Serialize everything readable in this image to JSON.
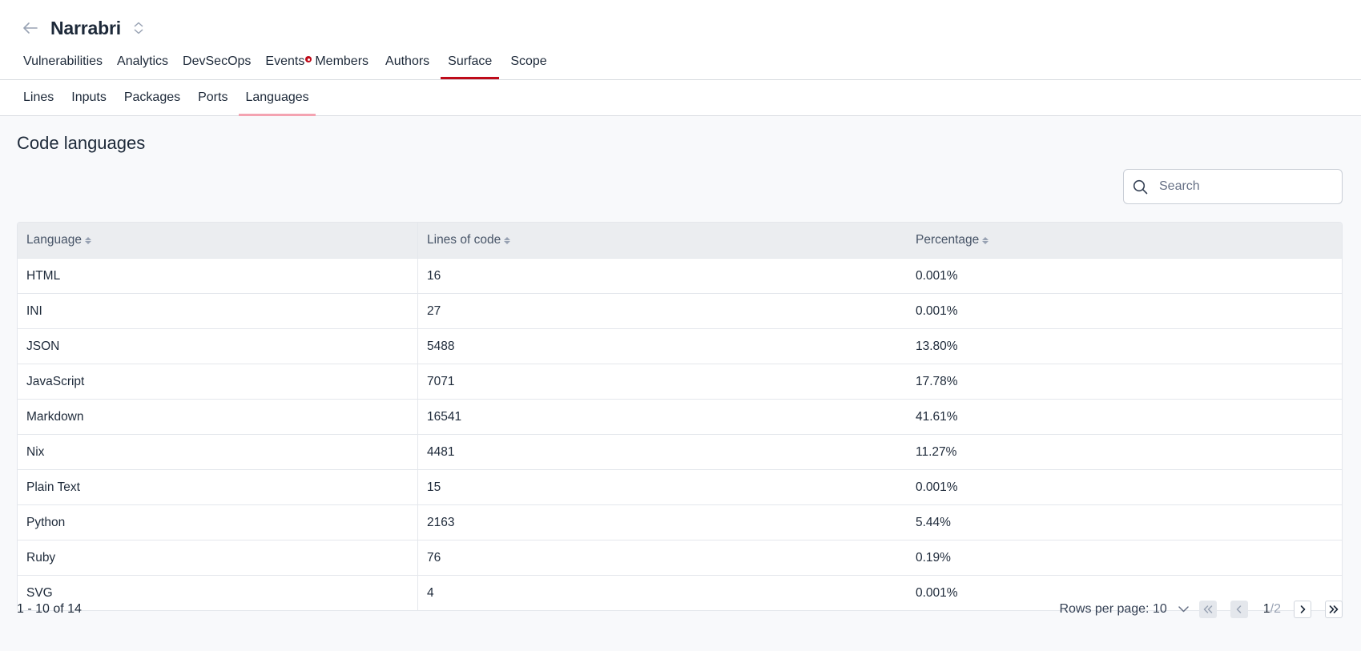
{
  "header": {
    "group_name": "Narrabri",
    "back_icon": "arrow-left-icon",
    "switch_icon": "sort-switch-icon"
  },
  "main_tabs": [
    {
      "label": "Vulnerabilities",
      "active": false
    },
    {
      "label": "Analytics",
      "active": false
    },
    {
      "label": "DevSecOps",
      "active": false
    },
    {
      "label": "Events",
      "active": false,
      "alert": true
    },
    {
      "label": "Members",
      "active": false
    },
    {
      "label": "Authors",
      "active": false
    },
    {
      "label": "Surface",
      "active": true
    },
    {
      "label": "Scope",
      "active": false
    }
  ],
  "sub_tabs": [
    {
      "label": "Lines",
      "active": false
    },
    {
      "label": "Inputs",
      "active": false
    },
    {
      "label": "Packages",
      "active": false
    },
    {
      "label": "Ports",
      "active": false
    },
    {
      "label": "Languages",
      "active": true
    }
  ],
  "page": {
    "title": "Code languages"
  },
  "search": {
    "placeholder": "Search",
    "value": ""
  },
  "table": {
    "columns": [
      "Language",
      "Lines of code",
      "Percentage"
    ],
    "rows": [
      {
        "language": "HTML",
        "lines": "16",
        "percentage": "0.001%"
      },
      {
        "language": "INI",
        "lines": "27",
        "percentage": "0.001%"
      },
      {
        "language": "JSON",
        "lines": "5488",
        "percentage": "13.80%"
      },
      {
        "language": "JavaScript",
        "lines": "7071",
        "percentage": "17.78%"
      },
      {
        "language": "Markdown",
        "lines": "16541",
        "percentage": "41.61%"
      },
      {
        "language": "Nix",
        "lines": "4481",
        "percentage": "11.27%"
      },
      {
        "language": "Plain Text",
        "lines": "15",
        "percentage": "0.001%"
      },
      {
        "language": "Python",
        "lines": "2163",
        "percentage": "5.44%"
      },
      {
        "language": "Ruby",
        "lines": "76",
        "percentage": "0.19%"
      },
      {
        "language": "SVG",
        "lines": "4",
        "percentage": "0.001%"
      }
    ]
  },
  "pagination": {
    "range": "1 - 10 of 14",
    "rows_per_page": "Rows per page: 10",
    "current_page": "1",
    "total_pages": "/2"
  },
  "colors": {
    "accent": "#bf0b1a",
    "sub_tab_underline": "#f4a3b1",
    "header_bg": "#ebedf0"
  }
}
